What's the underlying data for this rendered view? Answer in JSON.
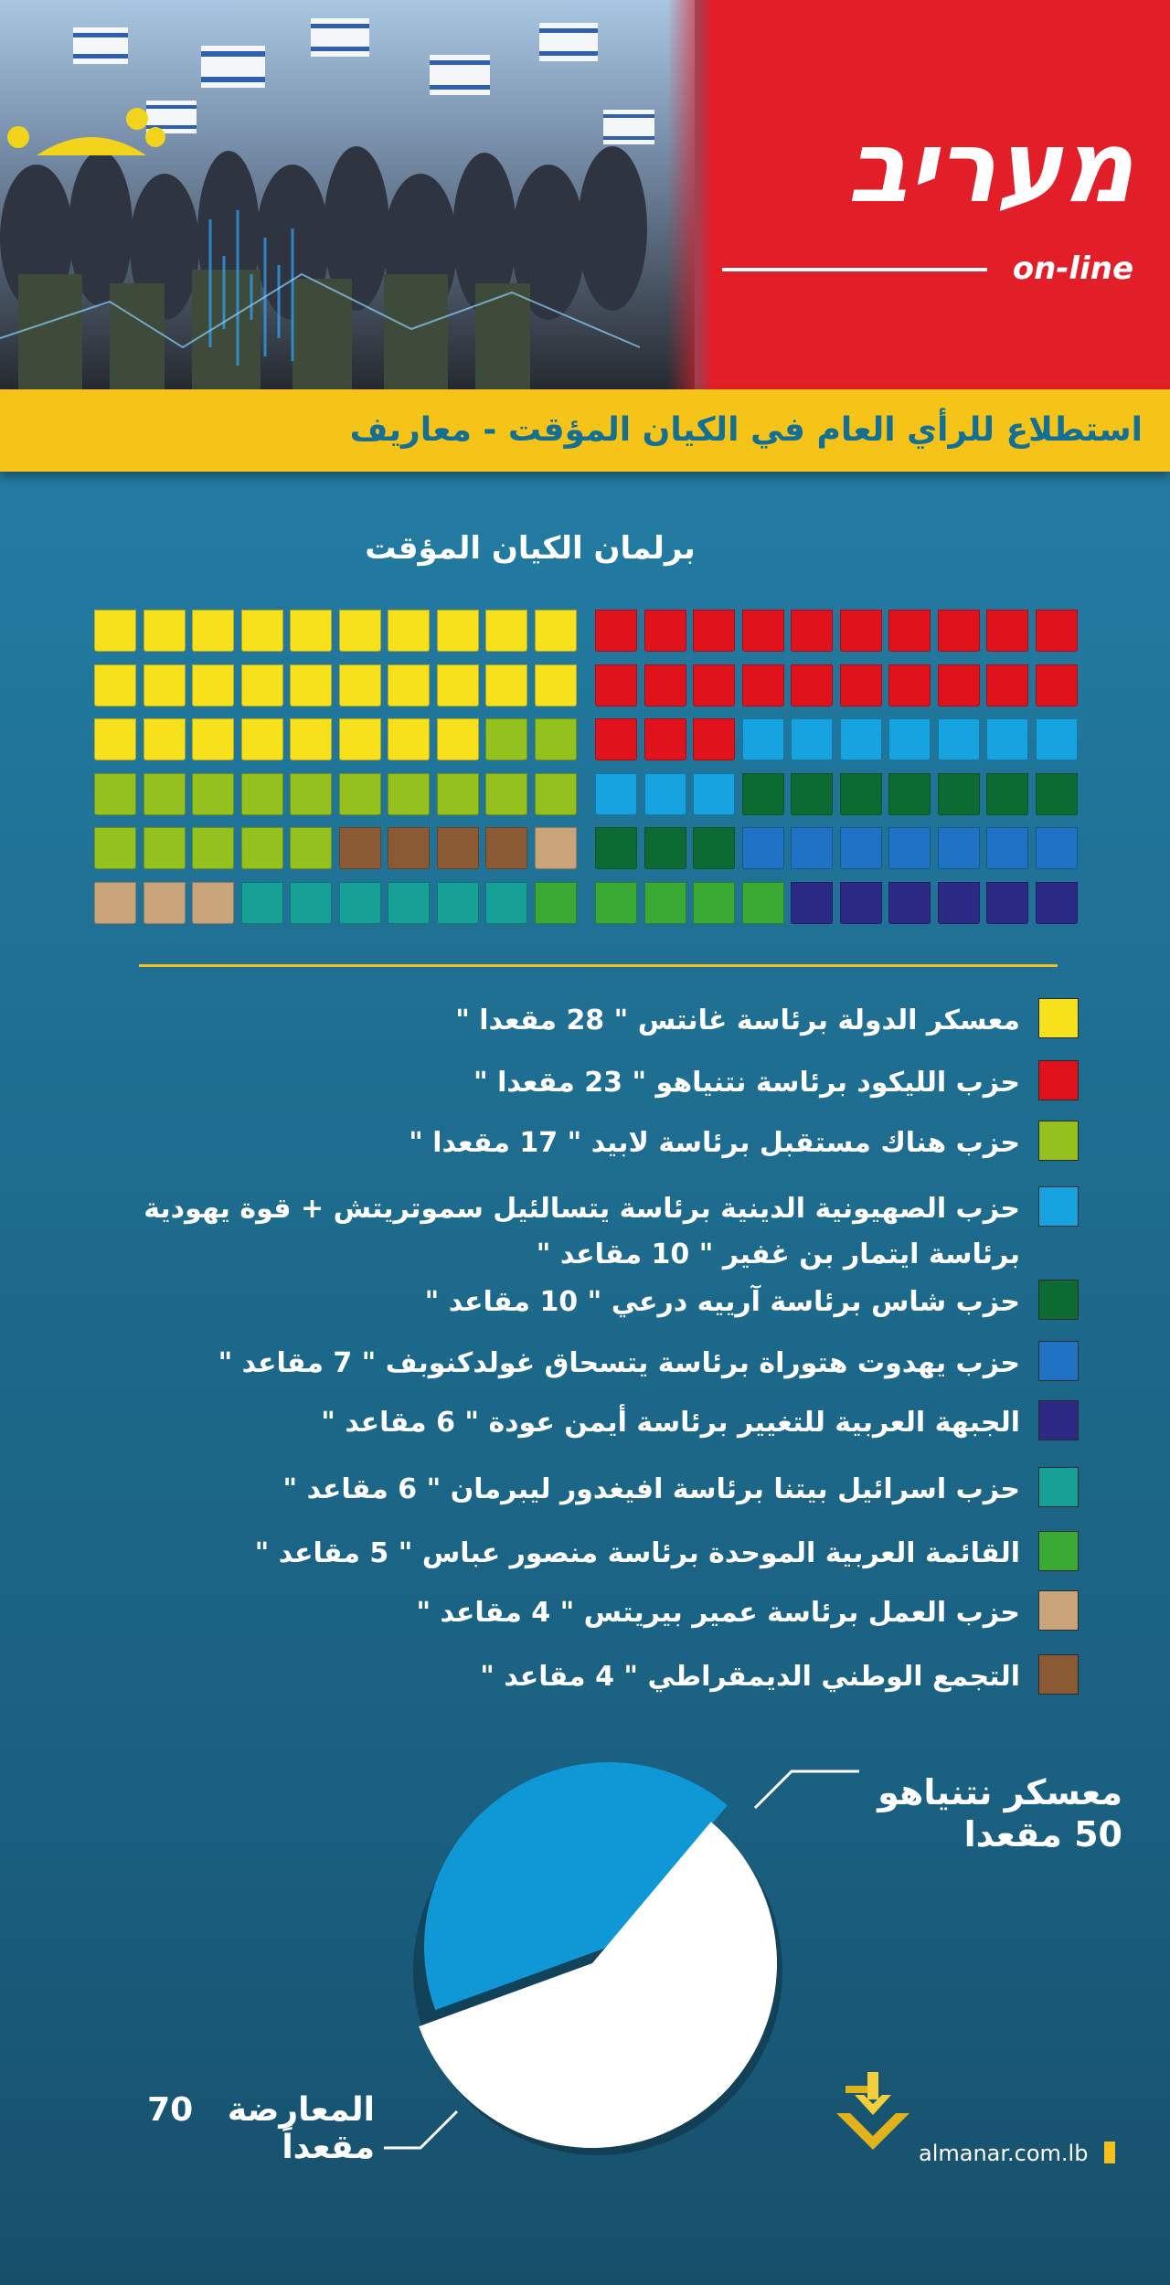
{
  "header": {
    "logo_text": "מעריב",
    "logo_sub": "on-line",
    "band_title": "استطلاع للرأي العام في الكيان المؤقت  -  معاريف"
  },
  "chart_data": [
    {
      "type": "waffle",
      "title": "برلمان الكيان المؤقت",
      "total_seats": 120,
      "series": [
        {
          "name": "معسكر الدولة برئاسة غانتس  \" 28 مقعدا \"",
          "value": 28,
          "color": "#f7e11d"
        },
        {
          "name": "حزب الليكود برئاسة نتنياهو \" 23 مقعدا \"",
          "value": 23,
          "color": "#e0121c"
        },
        {
          "name": "حزب هناك مستقبل برئاسة لابيد  \" 17 مقعدا \"",
          "value": 17,
          "color": "#95c11f"
        },
        {
          "name": "حزب الصهيونية الدينية برئاسة يتسالئيل سموتريتش + قوة يهودية برئاسة ايتمار بن غفير  \" 10 مقاعد \"",
          "value": 10,
          "color": "#17a2e0"
        },
        {
          "name": "حزب شاس برئاسة آرييه درعي \" 10 مقاعد \"",
          "value": 10,
          "color": "#0c6a33"
        },
        {
          "name": "حزب يهدوت هتوراة برئاسة يتسحاق غولدكنوبف \" 7 مقاعد \"",
          "value": 7,
          "color": "#1f72c4"
        },
        {
          "name": "الجبهة العربية للتغيير برئاسة أيمن عودة \" 6 مقاعد \"",
          "value": 6,
          "color": "#2d2a86"
        },
        {
          "name": "حزب اسرائيل بيتنا برئاسة افيغدور ليبرمان \" 6 مقاعد \"",
          "value": 6,
          "color": "#17a196"
        },
        {
          "name": "القائمة العربية الموحدة  برئاسة منصور عباس \" 5 مقاعد \"",
          "value": 5,
          "color": "#3aaa35"
        },
        {
          "name": "حزب العمل برئاسة عمير بيريتس \" 4 مقاعد \"",
          "value": 4,
          "color": "#c9a47a"
        },
        {
          "name": "التجمع الوطني الديمقراطي  \" 4 مقاعد \"",
          "value": 4,
          "color": "#8a5a34"
        }
      ]
    },
    {
      "type": "pie",
      "series": [
        {
          "name": "معسكر نتنياهو",
          "label": "50 مقعدا",
          "value": 50,
          "color": "#0f97d6"
        },
        {
          "name": "المعارضة",
          "label": "70 مقعداً",
          "value": 70,
          "color": "#ffffff"
        }
      ]
    }
  ],
  "footer": {
    "brand": "almanar.com.lb",
    "brand_color": "#f2c11b"
  }
}
